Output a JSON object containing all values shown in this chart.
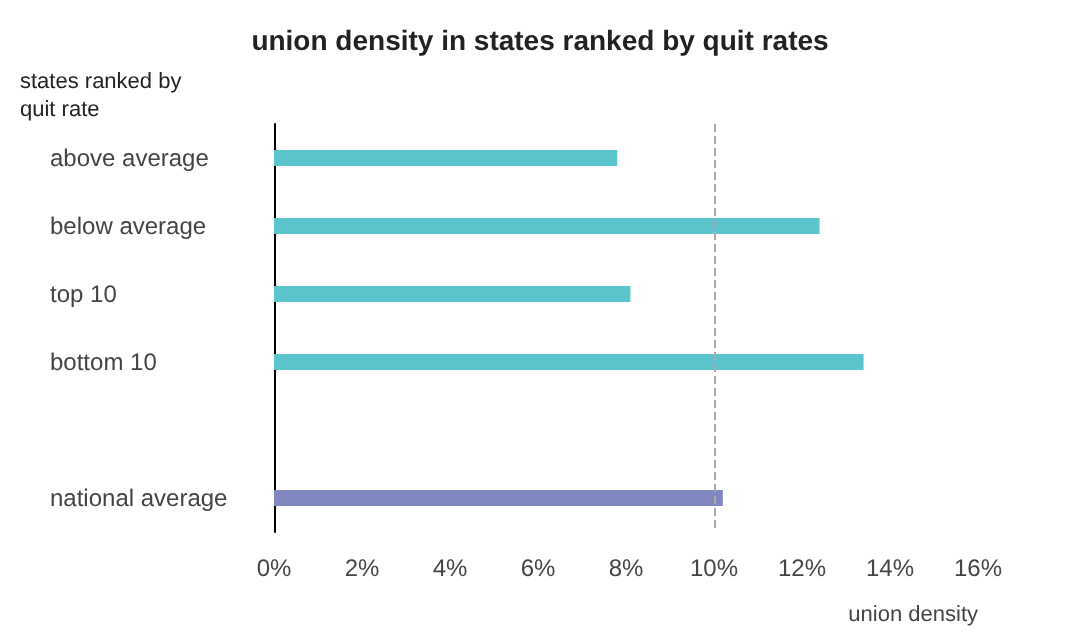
{
  "chart_data": {
    "type": "bar",
    "orientation": "horizontal",
    "title": "union density in states ranked by quit rates",
    "ylabel": "states ranked by quit rate",
    "xlabel": "union density",
    "categories": [
      "above average",
      "below average",
      "top 10",
      "bottom 10",
      null,
      "national average"
    ],
    "values": [
      7.8,
      12.4,
      8.1,
      13.4,
      null,
      10.2
    ],
    "colors": [
      "#5bc4cc",
      "#5bc4cc",
      "#5bc4cc",
      "#5bc4cc",
      "#5bc4cc",
      "#7f86c0"
    ],
    "xlim": [
      0,
      16
    ],
    "xticks": [
      {
        "value": 0,
        "label": "0%"
      },
      {
        "value": 2,
        "label": "2%"
      },
      {
        "value": 4,
        "label": "4%"
      },
      {
        "value": 6,
        "label": "6%"
      },
      {
        "value": 8,
        "label": "8%"
      },
      {
        "value": 10,
        "label": "10%"
      },
      {
        "value": 12,
        "label": "12%"
      },
      {
        "value": 14,
        "label": "14%"
      },
      {
        "value": 16,
        "label": "16%"
      }
    ],
    "ref_lines": [
      {
        "axis": "x",
        "value": 10,
        "color": "#aaaaaa",
        "line_style": "dashed"
      }
    ],
    "grid": false
  }
}
